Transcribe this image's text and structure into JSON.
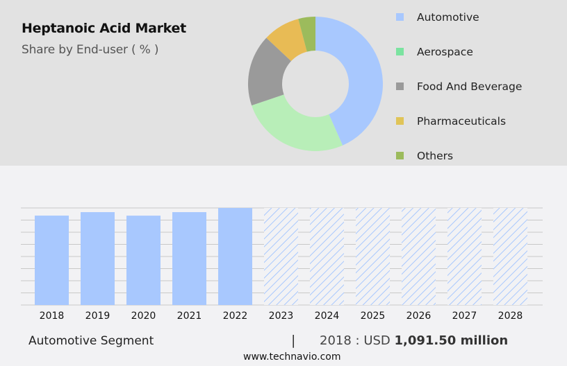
{
  "header": {
    "title": "Heptanoic Acid Market",
    "subtitle": "Share by End-user ( % )"
  },
  "legend": {
    "items": [
      {
        "label": "Automotive",
        "color": "#a8c8fe"
      },
      {
        "label": "Aerospace",
        "color": "#7be3a0"
      },
      {
        "label": "Food And Beverage",
        "color": "#9a9a9a"
      },
      {
        "label": "Pharmaceuticals",
        "color": "#e0c458"
      },
      {
        "label": "Others",
        "color": "#9cbb5c"
      }
    ]
  },
  "footer": {
    "segment": "Automotive Segment",
    "separator": "|",
    "value_prefix": "2018 : USD ",
    "value_bold": "1,091.50 million",
    "url": "www.technavio.com"
  },
  "chart_data": [
    {
      "type": "pie",
      "title": "Heptanoic Acid Market",
      "subtitle": "Share by End-user ( % )",
      "donut": true,
      "categories": [
        "Automotive",
        "Aerospace",
        "Food And Beverage",
        "Pharmaceuticals",
        "Others"
      ],
      "values": [
        43.4,
        26.4,
        17.2,
        8.9,
        4.1
      ],
      "colors": [
        "#a8c8fe",
        "#b8eeb8",
        "#9a9a9a",
        "#e8bb55",
        "#9cbb5c"
      ],
      "legend_position": "right"
    },
    {
      "type": "bar",
      "title": "Automotive Segment",
      "categories": [
        "2018",
        "2019",
        "2020",
        "2021",
        "2022",
        "2023",
        "2024",
        "2025",
        "2026",
        "2027",
        "2028"
      ],
      "series": [
        {
          "name": "Actual",
          "values": [
            1091.5,
            1134,
            1091,
            1134,
            1185,
            null,
            null,
            null,
            null,
            null,
            null
          ]
        },
        {
          "name": "Forecast (hatched)",
          "values": [
            null,
            null,
            null,
            null,
            null,
            1185,
            1185,
            1185,
            1185,
            1185,
            1185
          ]
        }
      ],
      "annotation": "2018 : USD 1,091.50 million",
      "xlabel": "",
      "ylabel": "",
      "ylim": [
        0,
        1185
      ],
      "grid": true,
      "bar_color": "#a8c8fe"
    }
  ]
}
